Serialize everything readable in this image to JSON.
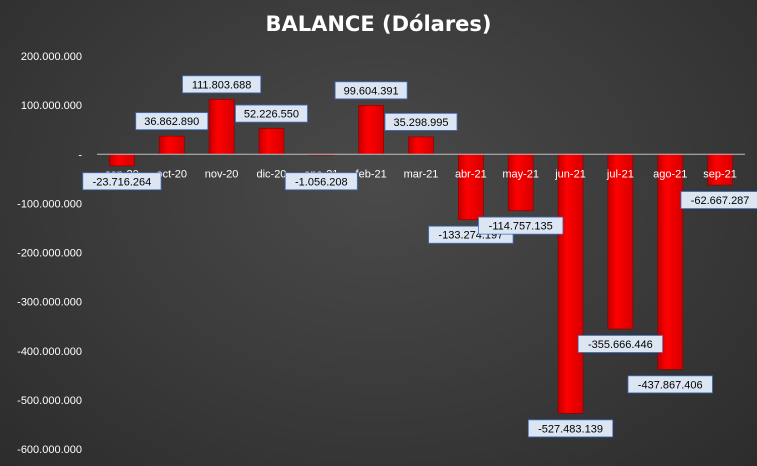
{
  "chart_data": {
    "type": "bar",
    "title": "BALANCE (Dólares)",
    "xlabel": "",
    "ylabel": "",
    "categories": [
      "sep-20",
      "oct-20",
      "nov-20",
      "dic-20",
      "ene-21",
      "feb-21",
      "mar-21",
      "abr-21",
      "may-21",
      "jun-21",
      "jul-21",
      "ago-21",
      "sep-21"
    ],
    "values": [
      -23716264,
      36862890,
      111803688,
      52226550,
      -1056208,
      99604391,
      35298995,
      -133274197,
      -114757135,
      -527483139,
      -355666446,
      -437867406,
      -62667287
    ],
    "data_labels": [
      "-23.716.264",
      "36.862.890",
      "111.803.688",
      "52.226.550",
      "-1.056.208",
      "99.604.391",
      "35.298.995",
      "-133.274.197",
      "-114.757.135",
      "-527.483.139",
      "-355.666.446",
      "-437.867.406",
      "-62.667.287"
    ],
    "yticks": [
      200000000,
      100000000,
      0,
      -100000000,
      -200000000,
      -300000000,
      -400000000,
      -500000000,
      -600000000
    ],
    "ytick_labels": [
      "200.000.000",
      "100.000.000",
      "-",
      "-100.000.000",
      "-200.000.000",
      "-300.000.000",
      "-400.000.000",
      "-500.000.000",
      "-600.000.000"
    ],
    "ylim": [
      -600000000,
      200000000
    ],
    "grid": false,
    "legend": "none",
    "colors": {
      "bar": "#ff0000",
      "bar_edge": "#8b0000",
      "label_box": "#dce6f2",
      "label_border": "#4472c4",
      "axis": "#bfbfbf"
    }
  }
}
